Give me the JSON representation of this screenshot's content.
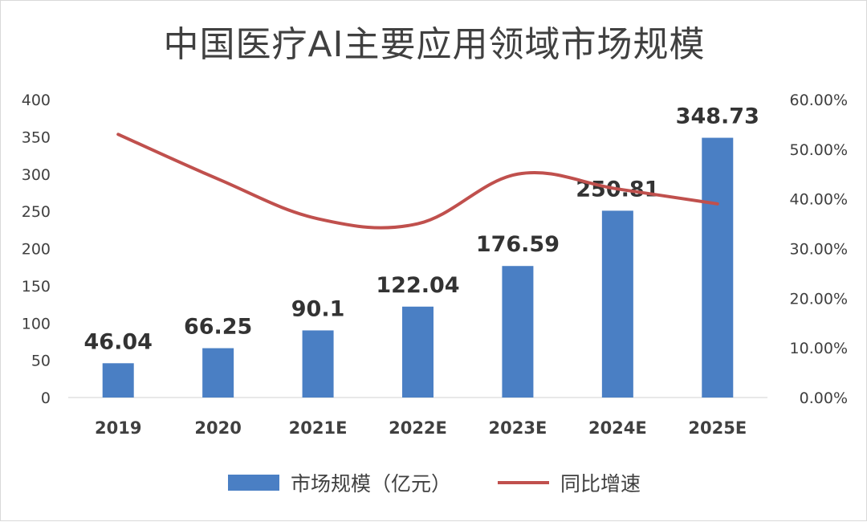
{
  "chart_data": {
    "type": "bar+line",
    "title": "中国医疗AI主要应用领域市场规模",
    "categories": [
      "2019",
      "2020",
      "2021E",
      "2022E",
      "2023E",
      "2024E",
      "2025E"
    ],
    "series": [
      {
        "name": "市场规模（亿元）",
        "type": "bar",
        "axis": "left",
        "values": [
          46.04,
          66.25,
          90.1,
          122.04,
          176.59,
          250.81,
          348.73
        ],
        "labels": [
          "46.04",
          "66.25",
          "90.1",
          "122.04",
          "176.59",
          "250.81",
          "348.73"
        ],
        "color": "#4a7fc4"
      },
      {
        "name": "同比增速",
        "type": "line",
        "axis": "right",
        "values": [
          0.53,
          0.44,
          0.36,
          0.35,
          0.45,
          0.42,
          0.39
        ],
        "color": "#c0504d"
      }
    ],
    "y_left": {
      "ylim": [
        0,
        400
      ],
      "ticks": [
        "0",
        "50",
        "100",
        "150",
        "200",
        "250",
        "300",
        "350",
        "400"
      ]
    },
    "y_right": {
      "ylim": [
        0,
        0.6
      ],
      "ticks": [
        "0.00%",
        "10.00%",
        "20.00%",
        "30.00%",
        "40.00%",
        "50.00%",
        "60.00%"
      ]
    },
    "grid": false,
    "legend_position": "bottom"
  }
}
